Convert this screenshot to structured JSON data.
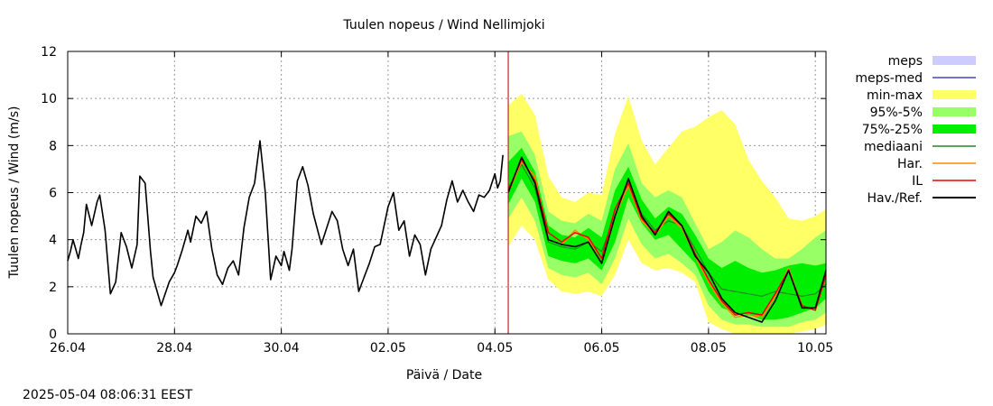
{
  "chart_data": {
    "type": "line",
    "title": "Tuulen nopeus / Wind  Nellimjoki",
    "xlabel": "Päivä / Date",
    "ylabel": "Tuulen nopeus / Wind (m/s)",
    "ylim": [
      0,
      12
    ],
    "yticks": [
      0,
      2,
      4,
      6,
      8,
      10,
      12
    ],
    "xlim": [
      0,
      14.2
    ],
    "xtick_labels": [
      {
        "label": "26.04",
        "day": 0
      },
      {
        "label": "28.04",
        "day": 2
      },
      {
        "label": "30.04",
        "day": 4
      },
      {
        "label": "02.05",
        "day": 6
      },
      {
        "label": "04.05",
        "day": 8
      },
      {
        "label": "06.05",
        "day": 10
      },
      {
        "label": "08.05",
        "day": 12
      },
      {
        "label": "10.05",
        "day": 14
      }
    ],
    "x_unit_note": "x values are days after 26.04",
    "grid": true,
    "legend_position": "right",
    "now_line_day": 8.25,
    "colors": {
      "minmax": "#ffff66",
      "p95_5": "#99ff66",
      "p75_25": "#00ee00",
      "median": "#228822",
      "meps_med": "#4444cc",
      "har": "#ff8800",
      "il": "#ee0000",
      "obs": "#000000",
      "now_line": "#aa0000",
      "meps": "#ccccff"
    },
    "legend": [
      {
        "label": "meps",
        "kind": "box",
        "color": "#ccccff"
      },
      {
        "label": "meps-med",
        "kind": "line",
        "color": "#4444cc"
      },
      {
        "label": "min-max",
        "kind": "box",
        "color": "#ffff66"
      },
      {
        "label": "95%-5%",
        "kind": "box",
        "color": "#99ff66"
      },
      {
        "label": "75%-25%",
        "kind": "box",
        "color": "#00ee00"
      },
      {
        "label": "mediaani",
        "kind": "line",
        "color": "#228822"
      },
      {
        "label": "Har.",
        "kind": "line",
        "color": "#ff8800"
      },
      {
        "label": "IL",
        "kind": "line",
        "color": "#ee0000"
      },
      {
        "label": "Hav./Ref.",
        "kind": "line",
        "color": "#000000"
      }
    ],
    "observed": {
      "name": "Hav./Ref.",
      "x": [
        0,
        0.05,
        0.1,
        0.15,
        0.2,
        0.25,
        0.3,
        0.35,
        0.45,
        0.55,
        0.6,
        0.7,
        0.8,
        0.9,
        1.0,
        1.1,
        1.2,
        1.3,
        1.35,
        1.45,
        1.55,
        1.6,
        1.75,
        1.9,
        2.0,
        2.05,
        2.15,
        2.25,
        2.3,
        2.4,
        2.5,
        2.6,
        2.7,
        2.8,
        2.9,
        3.0,
        3.1,
        3.2,
        3.3,
        3.4,
        3.5,
        3.6,
        3.7,
        3.8,
        3.9,
        4.0,
        4.05,
        4.15,
        4.2,
        4.3,
        4.4,
        4.5,
        4.6,
        4.75,
        4.85,
        4.95,
        5.05,
        5.15,
        5.25,
        5.35,
        5.45,
        5.55,
        5.65,
        5.75,
        5.85,
        6.0,
        6.1,
        6.2,
        6.3,
        6.4,
        6.5,
        6.6,
        6.7,
        6.8,
        6.9,
        7.0,
        7.1,
        7.2,
        7.3,
        7.4,
        7.5,
        7.6,
        7.7,
        7.8,
        7.9,
        8.0,
        8.05,
        8.1,
        8.15
      ],
      "y": [
        3.1,
        3.5,
        4.0,
        3.6,
        3.2,
        3.8,
        4.3,
        5.5,
        4.6,
        5.6,
        5.9,
        4.4,
        1.7,
        2.2,
        4.3,
        3.7,
        2.8,
        3.8,
        6.7,
        6.4,
        3.5,
        2.4,
        1.2,
        2.2,
        2.6,
        2.9,
        3.6,
        4.4,
        3.9,
        5.0,
        4.7,
        5.2,
        3.6,
        2.5,
        2.1,
        2.8,
        3.1,
        2.5,
        4.5,
        5.8,
        6.4,
        8.2,
        6.0,
        2.3,
        3.3,
        2.9,
        3.5,
        2.7,
        3.6,
        6.5,
        7.1,
        6.3,
        5.1,
        3.8,
        4.5,
        5.2,
        4.8,
        3.6,
        2.9,
        3.6,
        1.8,
        2.4,
        3.0,
        3.7,
        3.8,
        5.4,
        6.0,
        4.4,
        4.8,
        3.3,
        4.2,
        3.8,
        2.5,
        3.6,
        4.1,
        4.6,
        5.7,
        6.5,
        5.6,
        6.1,
        5.6,
        5.2,
        5.9,
        5.8,
        6.1,
        6.8,
        6.2,
        6.5,
        7.6
      ]
    },
    "forecast_x": [
      8.25,
      8.5,
      8.75,
      9.0,
      9.25,
      9.5,
      9.75,
      10.0,
      10.25,
      10.5,
      10.75,
      11.0,
      11.25,
      11.5,
      11.75,
      12.0,
      12.25,
      12.5,
      12.75,
      13.0,
      13.25,
      13.5,
      13.75,
      14.0,
      14.2
    ],
    "bands": {
      "minmax_lo": [
        3.7,
        4.6,
        4.0,
        2.3,
        1.8,
        1.7,
        1.8,
        1.6,
        2.5,
        4.0,
        3.0,
        2.7,
        2.8,
        2.6,
        2.2,
        0.5,
        0.2,
        0.0,
        0.0,
        0.0,
        0.0,
        0.0,
        0.1,
        0.2,
        0.4
      ],
      "minmax_hi": [
        9.7,
        10.2,
        9.3,
        6.7,
        5.8,
        5.6,
        6.0,
        5.9,
        8.5,
        10.1,
        8.2,
        7.2,
        7.9,
        8.6,
        8.8,
        9.2,
        9.5,
        8.9,
        7.4,
        6.5,
        5.8,
        4.9,
        4.8,
        5.0,
        5.3
      ],
      "p95_lo": [
        4.9,
        5.8,
        4.8,
        2.8,
        2.5,
        2.4,
        2.6,
        2.1,
        3.2,
        4.9,
        3.8,
        3.2,
        3.4,
        3.0,
        2.5,
        1.2,
        0.6,
        0.4,
        0.4,
        0.3,
        0.3,
        0.3,
        0.5,
        0.6,
        0.9
      ],
      "p95_hi": [
        8.4,
        8.6,
        7.6,
        5.2,
        4.8,
        4.7,
        5.1,
        4.8,
        7.0,
        8.1,
        6.4,
        5.8,
        6.1,
        5.8,
        4.7,
        3.6,
        3.9,
        4.4,
        4.1,
        3.6,
        3.2,
        3.2,
        3.6,
        4.1,
        4.4
      ],
      "p75_lo": [
        5.5,
        6.6,
        5.6,
        3.3,
        3.1,
        3.0,
        3.2,
        2.7,
        3.9,
        5.8,
        4.7,
        4.0,
        4.2,
        3.6,
        3.0,
        1.8,
        1.1,
        0.9,
        0.8,
        0.6,
        0.6,
        0.7,
        0.9,
        1.1,
        1.5
      ],
      "p75_hi": [
        7.3,
        7.9,
        6.9,
        4.6,
        4.2,
        4.1,
        4.5,
        4.1,
        6.1,
        7.1,
        5.7,
        4.9,
        5.4,
        5.1,
        4.2,
        3.2,
        2.8,
        3.1,
        2.8,
        2.6,
        2.7,
        2.9,
        3.0,
        2.9,
        3.0
      ],
      "median": [
        6.2,
        7.2,
        6.2,
        3.9,
        3.7,
        3.6,
        3.9,
        3.5,
        5.0,
        6.5,
        5.1,
        4.4,
        4.8,
        4.6,
        3.6,
        2.6,
        1.9,
        1.8,
        1.7,
        1.6,
        1.8,
        1.7,
        1.6,
        1.7,
        2.1
      ]
    },
    "series": [
      {
        "name": "IL",
        "color": "#ee0000",
        "values": [
          6.1,
          7.4,
          6.5,
          4.3,
          3.9,
          4.3,
          4.1,
          3.2,
          5.3,
          6.4,
          4.9,
          4.3,
          5.1,
          4.6,
          3.4,
          2.3,
          1.4,
          0.8,
          0.9,
          0.8,
          1.7,
          2.7,
          1.2,
          1.0,
          2.5
        ]
      },
      {
        "name": "Har.",
        "color": "#ff8800",
        "values": [
          6.0,
          7.3,
          6.7,
          4.0,
          3.8,
          4.4,
          4.0,
          3.2,
          5.0,
          6.3,
          4.8,
          4.2,
          5.0,
          4.5,
          3.3,
          2.2,
          1.3,
          0.7,
          0.8,
          0.7,
          1.6,
          2.8,
          1.1,
          1.1,
          2.6
        ]
      },
      {
        "name": "Hav./Ref.",
        "color": "#000000",
        "values": [
          6.0,
          7.5,
          6.4,
          4.0,
          3.8,
          3.7,
          3.9,
          3.0,
          5.0,
          6.6,
          5.0,
          4.2,
          5.2,
          4.6,
          3.3,
          2.6,
          1.5,
          0.9,
          0.7,
          0.5,
          1.4,
          2.7,
          1.1,
          1.1,
          2.7
        ]
      }
    ]
  },
  "footer": {
    "timestamp": "2025-05-04 08:06:31 EEST"
  }
}
